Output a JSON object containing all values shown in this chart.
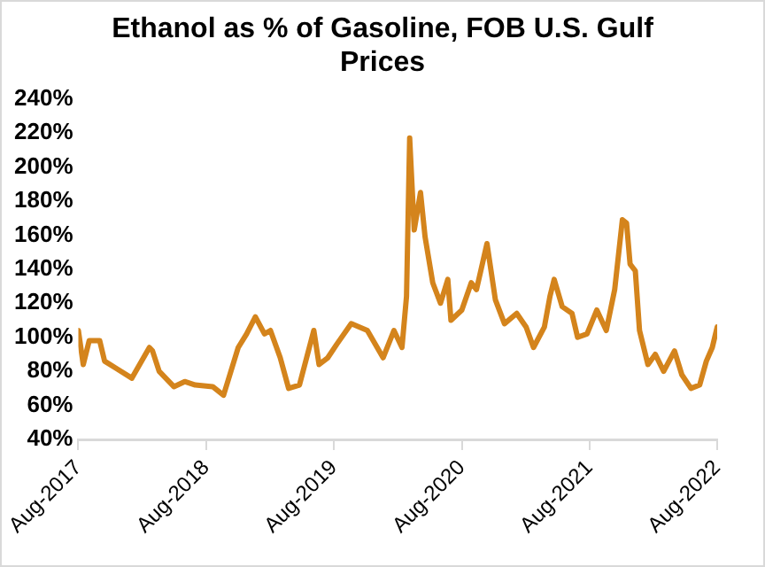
{
  "chart_data": {
    "type": "line",
    "title": "Ethanol as % of Gasoline, FOB U.S. Gulf Prices",
    "x": [
      "2017-08-01",
      "2017-08-15",
      "2017-09-01",
      "2017-10-01",
      "2017-10-15",
      "2017-11-15",
      "2018-01-01",
      "2018-02-20",
      "2018-03-01",
      "2018-03-20",
      "2018-05-01",
      "2018-06-01",
      "2018-07-01",
      "2018-08-20",
      "2018-09-20",
      "2018-11-01",
      "2018-11-25",
      "2018-12-20",
      "2019-01-15",
      "2019-02-01",
      "2019-03-01",
      "2019-03-25",
      "2019-04-25",
      "2019-06-05",
      "2019-06-20",
      "2019-07-15",
      "2019-08-10",
      "2019-09-20",
      "2019-11-05",
      "2019-12-20",
      "2020-01-20",
      "2020-02-12",
      "2020-02-25",
      "2020-03-05",
      "2020-03-18",
      "2020-04-05",
      "2020-04-18",
      "2020-05-10",
      "2020-06-01",
      "2020-06-22",
      "2020-07-01",
      "2020-08-01",
      "2020-08-28",
      "2020-09-12",
      "2020-10-12",
      "2020-11-05",
      "2020-12-01",
      "2021-01-05",
      "2021-02-01",
      "2021-02-22",
      "2021-03-25",
      "2021-04-10",
      "2021-04-22",
      "2021-05-15",
      "2021-06-12",
      "2021-06-28",
      "2021-07-25",
      "2021-08-22",
      "2021-09-18",
      "2021-10-12",
      "2021-11-03",
      "2021-11-15",
      "2021-11-25",
      "2021-12-10",
      "2021-12-22",
      "2022-01-15",
      "2022-02-05",
      "2022-03-01",
      "2022-04-01",
      "2022-04-22",
      "2022-05-18",
      "2022-06-12",
      "2022-07-01",
      "2022-07-18",
      "2022-08-01"
    ],
    "series": [
      {
        "color": "#d4841c",
        "values": [
          104,
          84,
          98,
          98,
          86,
          82,
          76,
          94,
          92,
          80,
          71,
          74,
          72,
          71,
          66,
          94,
          102,
          112,
          102,
          104,
          88,
          70,
          72,
          104,
          84,
          88,
          96,
          108,
          104,
          88,
          104,
          94,
          124,
          217,
          163,
          185,
          159,
          132,
          120,
          134,
          110,
          116,
          132,
          128,
          155,
          122,
          108,
          114,
          106,
          94,
          106,
          124,
          134,
          118,
          114,
          100,
          102,
          116,
          104,
          128,
          169,
          167,
          143,
          139,
          104,
          84,
          90,
          80,
          92,
          78,
          70,
          72,
          86,
          94,
          106
        ]
      }
    ],
    "xlim": [
      "2017-08-01",
      "2022-08-01"
    ],
    "xticks": [
      {
        "value": "2017-08-01",
        "label": "Aug-2017"
      },
      {
        "value": "2018-08-01",
        "label": "Aug-2018"
      },
      {
        "value": "2019-08-01",
        "label": "Aug-2019"
      },
      {
        "value": "2020-08-01",
        "label": "Aug-2020"
      },
      {
        "value": "2021-08-01",
        "label": "Aug-2021"
      },
      {
        "value": "2022-08-01",
        "label": "Aug-2022"
      }
    ],
    "ylim": [
      40,
      240
    ],
    "yticks": [
      {
        "value": 40,
        "label": "40%"
      },
      {
        "value": 60,
        "label": "60%"
      },
      {
        "value": 80,
        "label": "80%"
      },
      {
        "value": 100,
        "label": "100%"
      },
      {
        "value": 120,
        "label": "120%"
      },
      {
        "value": 140,
        "label": "140%"
      },
      {
        "value": 160,
        "label": "160%"
      },
      {
        "value": 180,
        "label": "180%"
      },
      {
        "value": 200,
        "label": "200%"
      },
      {
        "value": 220,
        "label": "220%"
      },
      {
        "value": 240,
        "label": "240%"
      }
    ],
    "grid": false,
    "legend": false,
    "marker": "none",
    "line_style": "solid"
  }
}
